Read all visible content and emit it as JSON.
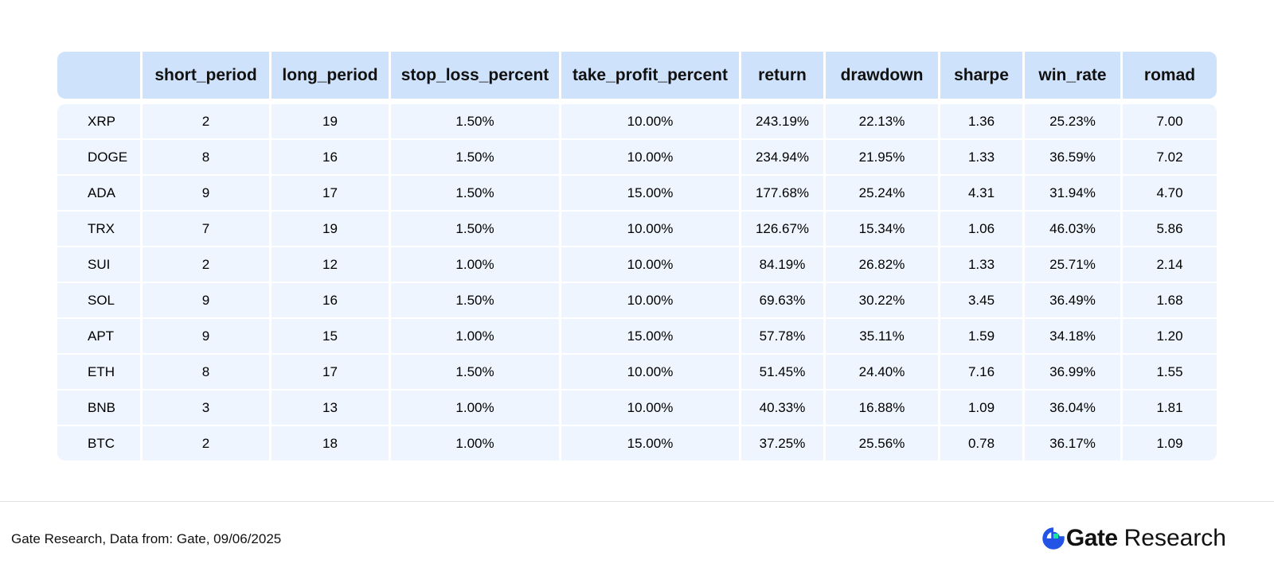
{
  "table": {
    "headers": [
      "",
      "short_period",
      "long_period",
      "stop_loss_percent",
      "take_profit_percent",
      "return",
      "drawdown",
      "sharpe",
      "win_rate",
      "romad"
    ],
    "rows": [
      [
        "XRP",
        "2",
        "19",
        "1.50%",
        "10.00%",
        "243.19%",
        "22.13%",
        "1.36",
        "25.23%",
        "7.00"
      ],
      [
        "DOGE",
        "8",
        "16",
        "1.50%",
        "10.00%",
        "234.94%",
        "21.95%",
        "1.33",
        "36.59%",
        "7.02"
      ],
      [
        "ADA",
        "9",
        "17",
        "1.50%",
        "15.00%",
        "177.68%",
        "25.24%",
        "4.31",
        "31.94%",
        "4.70"
      ],
      [
        "TRX",
        "7",
        "19",
        "1.50%",
        "10.00%",
        "126.67%",
        "15.34%",
        "1.06",
        "46.03%",
        "5.86"
      ],
      [
        "SUI",
        "2",
        "12",
        "1.00%",
        "10.00%",
        "84.19%",
        "26.82%",
        "1.33",
        "25.71%",
        "2.14"
      ],
      [
        "SOL",
        "9",
        "16",
        "1.50%",
        "10.00%",
        "69.63%",
        "30.22%",
        "3.45",
        "36.49%",
        "1.68"
      ],
      [
        "APT",
        "9",
        "15",
        "1.00%",
        "15.00%",
        "57.78%",
        "35.11%",
        "1.59",
        "34.18%",
        "1.20"
      ],
      [
        "ETH",
        "8",
        "17",
        "1.50%",
        "10.00%",
        "51.45%",
        "24.40%",
        "7.16",
        "36.99%",
        "1.55"
      ],
      [
        "BNB",
        "3",
        "13",
        "1.00%",
        "10.00%",
        "40.33%",
        "16.88%",
        "1.09",
        "36.04%",
        "1.81"
      ],
      [
        "BTC",
        "2",
        "18",
        "1.00%",
        "15.00%",
        "37.25%",
        "25.56%",
        "0.78",
        "36.17%",
        "1.09"
      ]
    ]
  },
  "footer": {
    "source": "Gate Research, Data from: Gate, 09/06/2025",
    "logo_brand": "Gate",
    "logo_suffix": "Research",
    "logo_icon": "gate-logo-icon"
  },
  "colors": {
    "header_bg": "#cfe2fb",
    "body_bg": "#eef5fe",
    "logo_blue": "#2354e6",
    "logo_green": "#17e6a1"
  }
}
